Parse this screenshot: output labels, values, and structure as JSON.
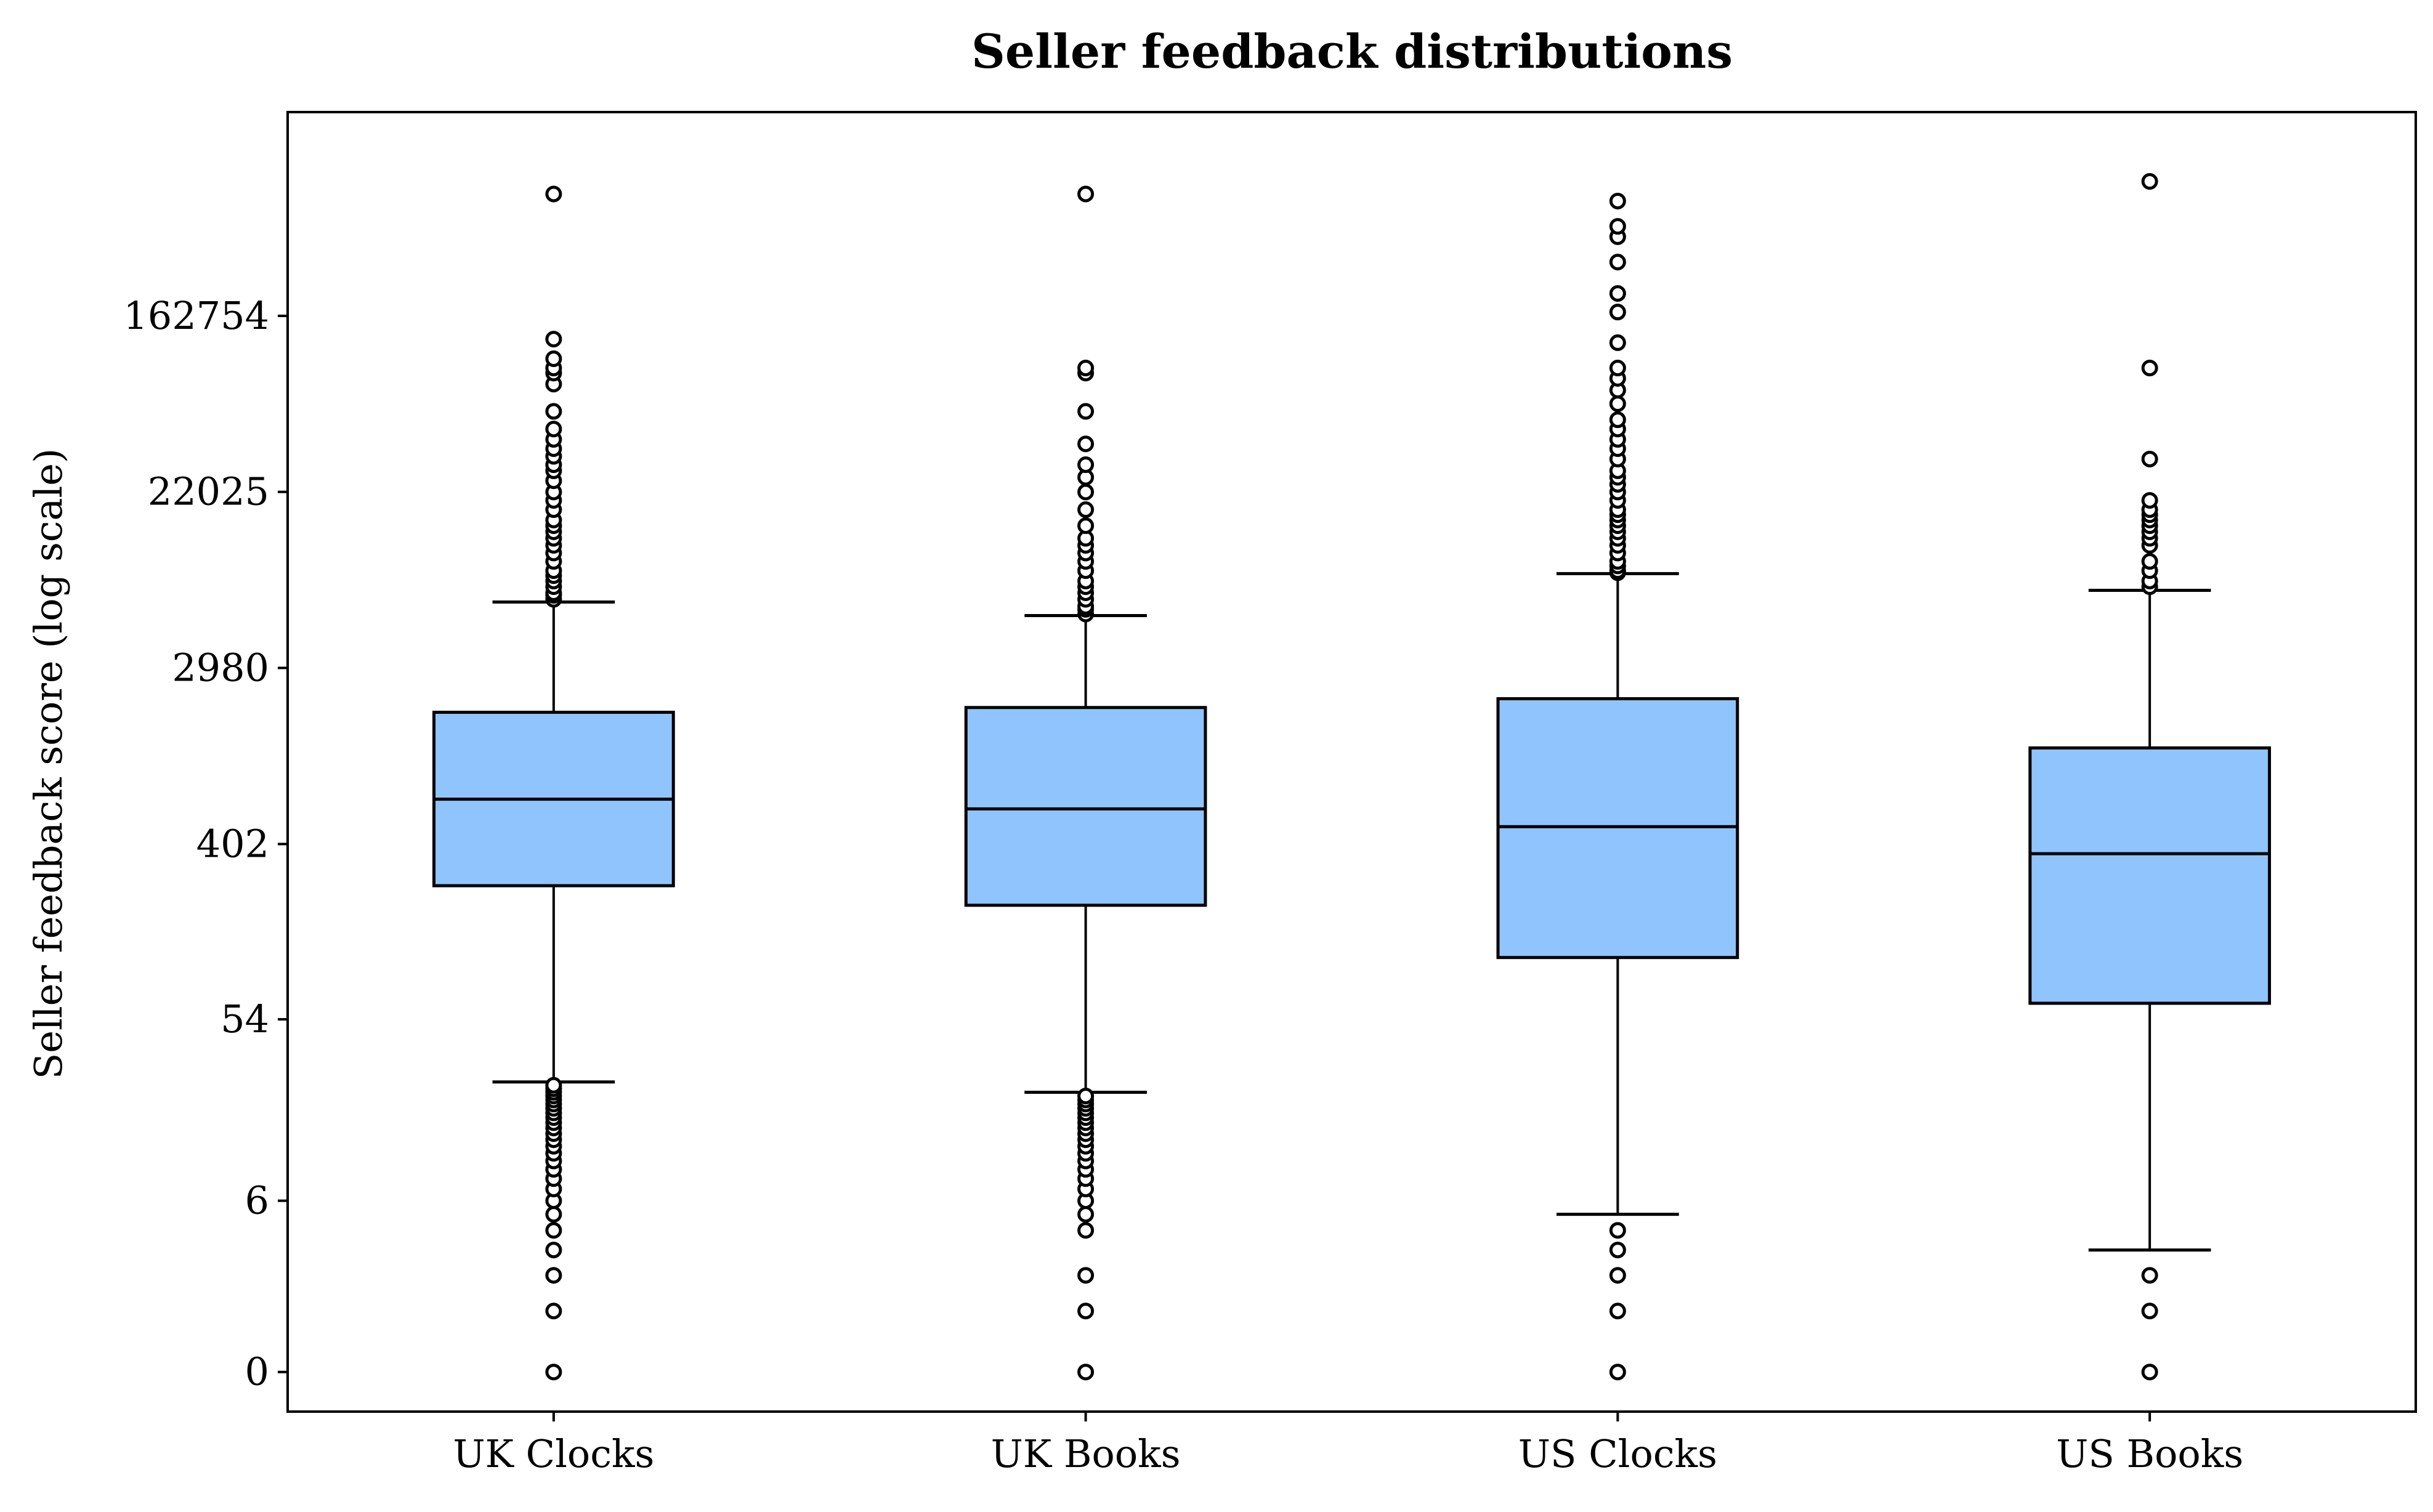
{
  "chart_data": {
    "type": "box",
    "title": "Seller feedback distributions",
    "xlabel": "",
    "ylabel": "Seller feedback score (log scale)",
    "yscale": "log1p",
    "grid": false,
    "y_ticks": [
      {
        "value": 0,
        "label": "0"
      },
      {
        "value": 6,
        "label": "6"
      },
      {
        "value": 54,
        "label": "54"
      },
      {
        "value": 402,
        "label": "402"
      },
      {
        "value": 2980,
        "label": "2980"
      },
      {
        "value": 22025,
        "label": "22025"
      },
      {
        "value": 162754,
        "label": "162754"
      }
    ],
    "ylim": [
      0,
      1000000
    ],
    "colors": {
      "box_fill": "#90c4fc",
      "edge": "#000000"
    },
    "categories": [
      "UK Clocks",
      "UK Books",
      "US Clocks",
      "US Books"
    ],
    "boxes": [
      {
        "name": "UK Clocks",
        "whisker_low": 26,
        "q1": 250,
        "median": 670,
        "q3": 1800,
        "whisker_high": 6300,
        "outliers": [
          0,
          1,
          2,
          3,
          4,
          5,
          6,
          7,
          8,
          9,
          10,
          11,
          12,
          13,
          14,
          15,
          16,
          17,
          18,
          19,
          20,
          21,
          22,
          23,
          24,
          25,
          6500,
          6800,
          7000,
          7500,
          8000,
          8500,
          9000,
          10000,
          11000,
          12000,
          13000,
          14000,
          15000,
          16000,
          18000,
          20000,
          22000,
          25000,
          28000,
          30000,
          33000,
          36000,
          40000,
          45000,
          55000,
          75000,
          85000,
          90000,
          100000,
          125000,
          650000
        ]
      },
      {
        "name": "UK Books",
        "whisker_low": 23,
        "q1": 200,
        "median": 600,
        "q3": 1900,
        "whisker_high": 5400,
        "outliers": [
          0,
          1,
          2,
          4,
          5,
          6,
          7,
          8,
          9,
          10,
          11,
          12,
          13,
          14,
          15,
          16,
          17,
          18,
          19,
          20,
          21,
          22,
          5500,
          5800,
          6000,
          6500,
          7000,
          7500,
          8000,
          9000,
          10000,
          11000,
          12000,
          13000,
          15000,
          18000,
          22000,
          26000,
          30000,
          38000,
          55000,
          85000,
          90000,
          650000
        ]
      },
      {
        "name": "US Clocks",
        "whisker_low": 5,
        "q1": 110,
        "median": 490,
        "q3": 2100,
        "whisker_high": 8700,
        "outliers": [
          0,
          1,
          2,
          3,
          4,
          8800,
          9000,
          9500,
          10000,
          11000,
          12000,
          13000,
          14000,
          15000,
          16000,
          17000,
          18000,
          20000,
          22000,
          24000,
          26000,
          28000,
          32000,
          36000,
          40000,
          45000,
          50000,
          60000,
          70000,
          80000,
          90000,
          120000,
          170000,
          210000,
          300000,
          400000,
          450000,
          600000
        ]
      },
      {
        "name": "US Books",
        "whisker_low": 3,
        "q1": 65,
        "median": 360,
        "q3": 1200,
        "whisker_high": 7200,
        "outliers": [
          0,
          1,
          2,
          7500,
          8000,
          9000,
          10000,
          12000,
          13000,
          14000,
          15000,
          16000,
          17000,
          18000,
          20000,
          32000,
          90000,
          750000
        ]
      }
    ]
  }
}
